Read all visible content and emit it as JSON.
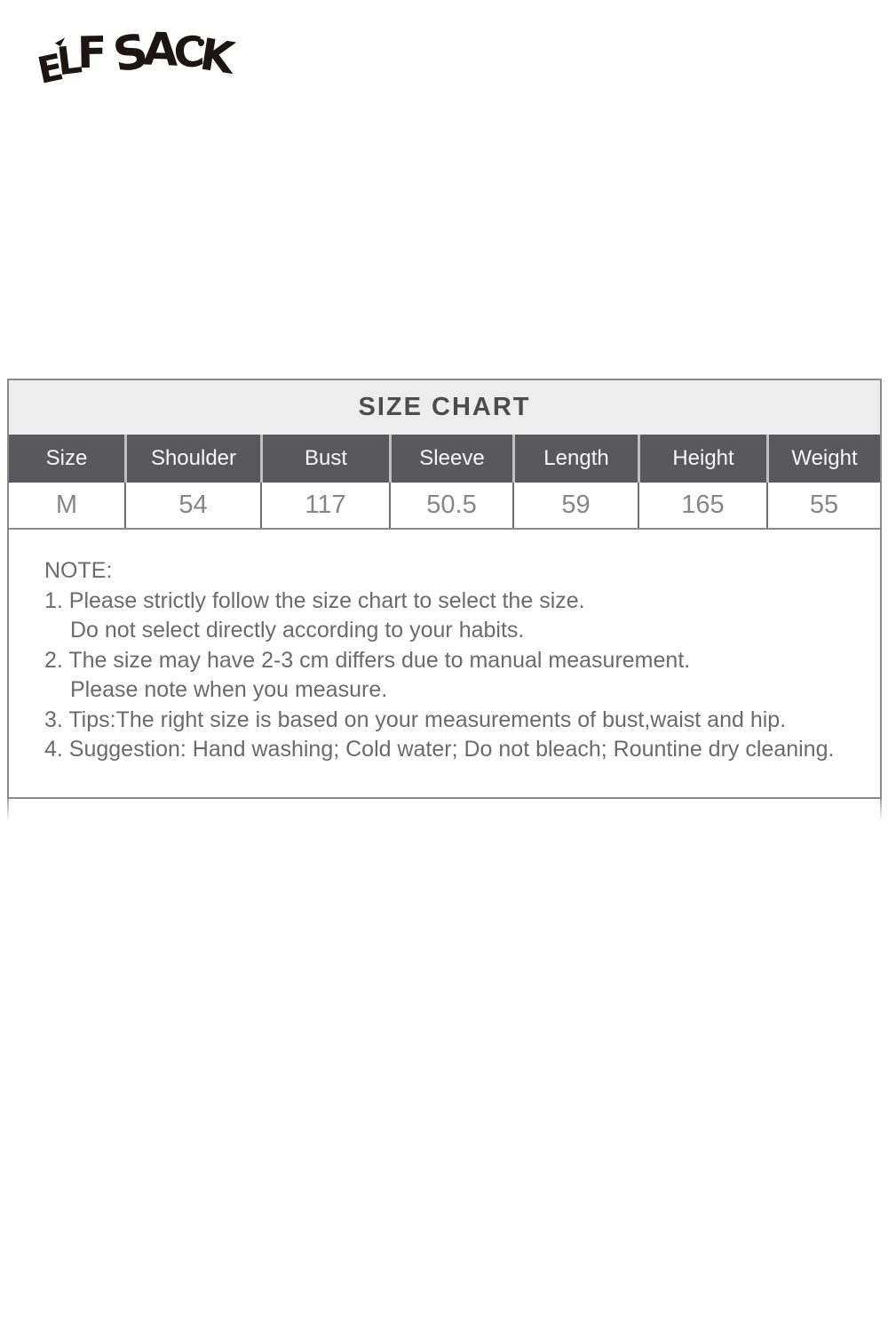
{
  "brand": {
    "name": "ELF SACK",
    "letters": [
      "E",
      "L",
      "F",
      "S",
      "A",
      "C",
      "K"
    ]
  },
  "size_chart": {
    "title": "SIZE CHART",
    "columns": [
      "Size",
      "Shoulder",
      "Bust",
      "Sleeve",
      "Length",
      "Height",
      "Weight"
    ],
    "rows": [
      [
        "M",
        "54",
        "117",
        "50.5",
        "59",
        "165",
        "55"
      ]
    ]
  },
  "notes": {
    "heading": "NOTE:",
    "lines": [
      "1. Please strictly follow the size chart to select the size.",
      "Do not select directly according to your habits.",
      "2. The size may have 2-3 cm differs due to manual measurement.",
      "Please note when you measure.",
      "3. Tips:The right size is based on your measurements of bust,waist and hip.",
      "4. Suggestion: Hand washing; Cold water; Do not bleach; Rountine dry cleaning."
    ]
  },
  "colors": {
    "page_bg": "#ffffff",
    "logo_text": "#1d1512",
    "title_bar_bg": "#ededed",
    "title_text": "#4c4c4c",
    "header_row_bg": "#59595b",
    "header_text": "#f7f7f7",
    "value_text": "#868686",
    "note_text": "#6b6b6b",
    "border": "#8a8a8a"
  }
}
